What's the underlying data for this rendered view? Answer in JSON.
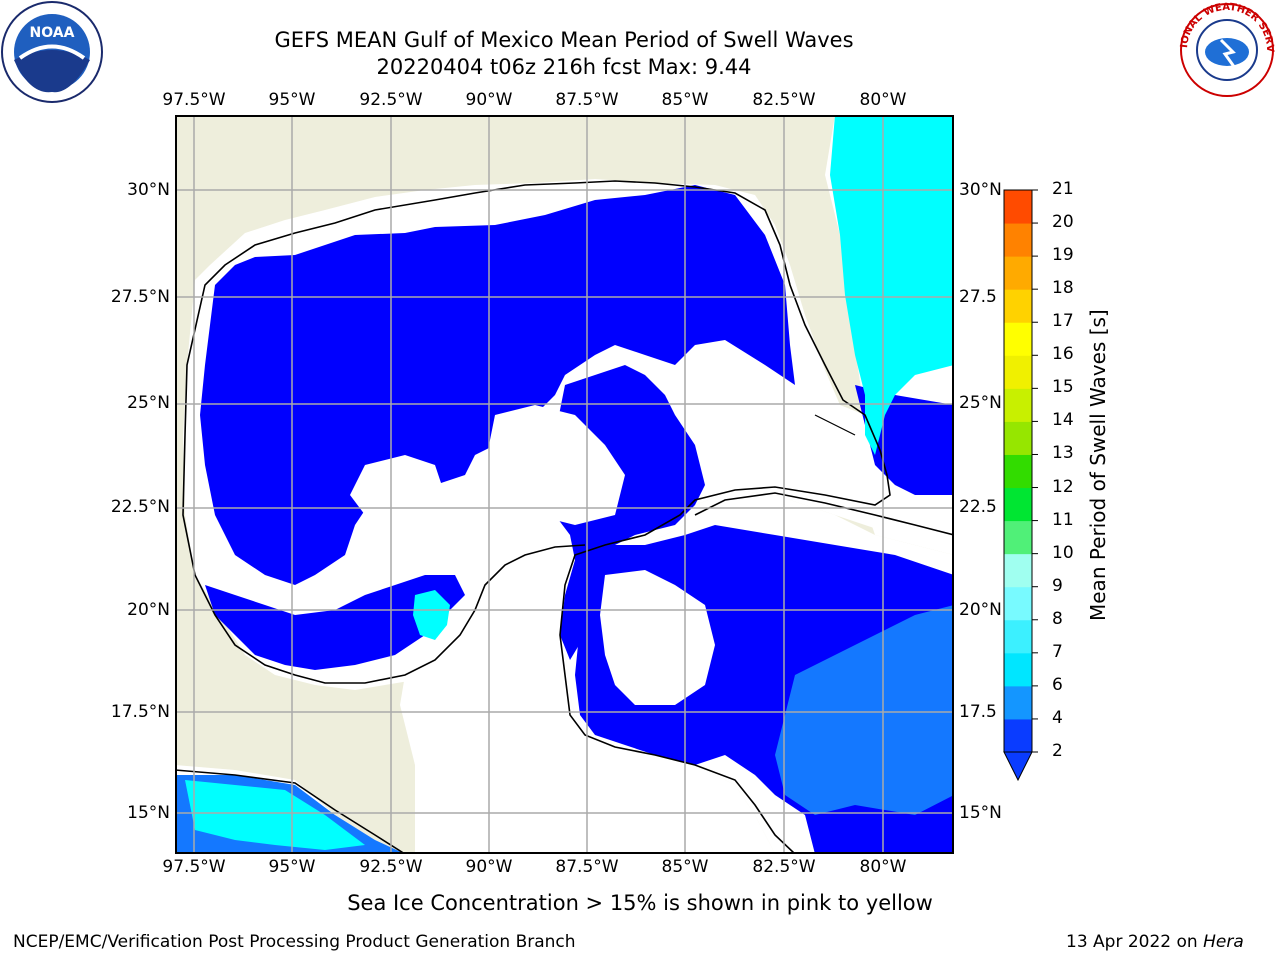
{
  "title_line1": "GEFS MEAN Gulf of Mexico Mean Period of Swell Waves",
  "title_line2": "20220404 t06z 216h fcst   Max: 9.44",
  "lon_ticks": [
    "97.5°W",
    "95°W",
    "92.5°W",
    "90°W",
    "87.5°W",
    "85°W",
    "82.5°W",
    "80°W"
  ],
  "lat_ticks_left": [
    "30°N",
    "27.5°N",
    "25°N",
    "22.5°N",
    "20°N",
    "17.5°N",
    "15°N"
  ],
  "lat_ticks_right": [
    "30°N",
    "27.5",
    "25°N",
    "22.5",
    "20°N",
    "17.5",
    "15°N"
  ],
  "colorbar": {
    "label": "Mean Period of Swell Waves [s]",
    "levels": [
      "2",
      "4",
      "6",
      "7",
      "8",
      "9",
      "10",
      "11",
      "12",
      "13",
      "14",
      "15",
      "16",
      "17",
      "18",
      "19",
      "20",
      "21"
    ],
    "colors": [
      "#0a3cff",
      "#1496ff",
      "#00e6ff",
      "#3cf0ff",
      "#78faff",
      "#a0fff0",
      "#50f078",
      "#00e632",
      "#32dc00",
      "#96e600",
      "#c8f000",
      "#f0f000",
      "#ffff00",
      "#ffd200",
      "#ffaa00",
      "#ff8200",
      "#ff4b00",
      "#ff1e00",
      "#ff0000"
    ]
  },
  "colors": {
    "land": "#eeeedc",
    "low_swell": "#0000ff",
    "mid_swell": "#1478ff",
    "high_swell": "#00ffff",
    "no_data": "#ffffff"
  },
  "footnote": "Sea Ice Concentration > 15% is shown in pink to yellow",
  "credit_left": "NCEP/EMC/Verification Post Processing Product Generation Branch",
  "credit_date": "13 Apr 2022 on ",
  "credit_machine": "Hera",
  "logos": {
    "left": "NOAA",
    "right": "NATIONAL WEATHER SERVICE"
  }
}
